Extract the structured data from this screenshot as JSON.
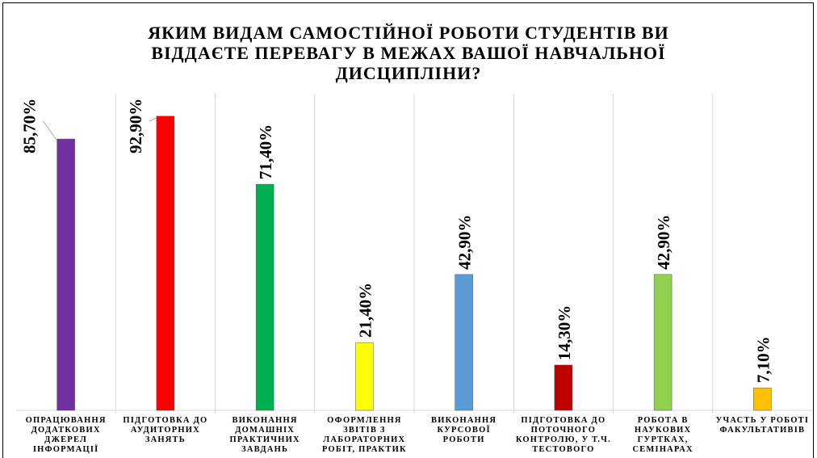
{
  "chart_data": {
    "type": "bar",
    "title": "ЯКИМ ВИДАМ САМОСТІЙНОЇ РОБОТИ СТУДЕНТІВ ВИ ВІДДАЄТЕ ПЕРЕВАГУ В МЕЖАХ ВАШОЇ НАВЧАЛЬНОЇ ДИСЦИПЛІНИ?",
    "categories": [
      "ОПРАЦЮВАННЯ ДОДАТКОВИХ ДЖЕРЕЛ ІНФОРМАЦІЇ",
      "ПІДГОТОВКА ДО АУДИТОРНИХ ЗАНЯТЬ",
      "ВИКОНАННЯ ДОМАШНІХ ПРАКТИЧНИХ ЗАВДАНЬ",
      "ОФОРМЛЕННЯ ЗВІТІВ З ЛАБОРАТОРНИХ РОБІТ, ПРАКТИК",
      "ВИКОНАННЯ КУРСОВОЇ РОБОТИ",
      "ПІДГОТОВКА ДО ПОТОЧНОГО КОНТРОЛЮ, У Т.Ч. ТЕСТОВОГО",
      "РОБОТА В НАУКОВИХ ГУРТКАХ, СЕМІНАРАХ",
      "УЧАСТЬ У РОБОТІ ФАКУЛЬТАТИВІВ"
    ],
    "values": [
      85.7,
      92.9,
      71.4,
      21.4,
      42.9,
      14.3,
      42.9,
      7.1
    ],
    "value_labels": [
      "85,70%",
      "92,90%",
      "71,40%",
      "21,40%",
      "42,90%",
      "14,30%",
      "42,90%",
      "7,10%"
    ],
    "colors": [
      "#7030a0",
      "#ff0000",
      "#00b050",
      "#ffff00",
      "#5b9bd5",
      "#c00000",
      "#92d050",
      "#ffc000"
    ],
    "ylim": [
      0,
      100
    ]
  }
}
